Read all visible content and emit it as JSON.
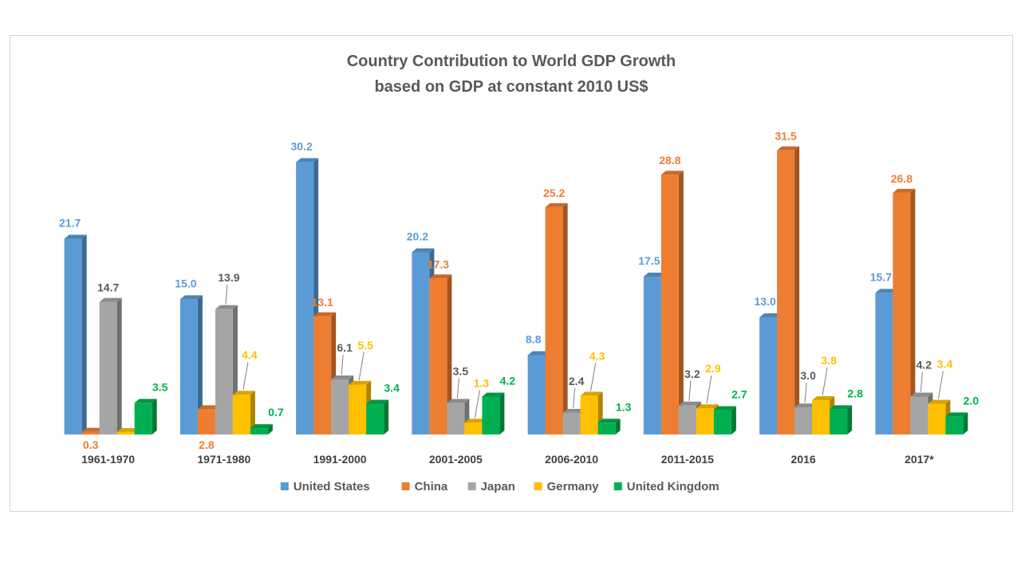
{
  "chart_data": {
    "type": "bar",
    "title": "Country Contribution to World GDP Growth",
    "subtitle": "based on GDP at constant 2010 US$",
    "categories": [
      "1961-1970",
      "1971-1980",
      "1991-2000",
      "2001-2005",
      "2006-2010",
      "2011-2015",
      "2016",
      "2017*"
    ],
    "series": [
      {
        "name": "United States",
        "color": "#5b9bd5",
        "values": [
          21.7,
          15.0,
          30.2,
          20.2,
          8.8,
          17.5,
          13.0,
          15.7
        ]
      },
      {
        "name": "China",
        "color": "#ed7d31",
        "values": [
          0.3,
          2.8,
          13.1,
          17.3,
          25.2,
          28.8,
          31.5,
          26.8
        ]
      },
      {
        "name": "Japan",
        "color": "#a5a5a5",
        "values": [
          14.7,
          13.9,
          6.1,
          3.5,
          2.4,
          3.2,
          3.0,
          4.2
        ]
      },
      {
        "name": "Germany",
        "color": "#ffc000",
        "values": [
          0.0,
          4.4,
          5.5,
          1.3,
          4.3,
          2.9,
          3.8,
          3.4
        ]
      },
      {
        "name": "United Kingdom",
        "color": "#00b050",
        "values": [
          3.5,
          0.7,
          3.4,
          4.2,
          1.3,
          2.7,
          2.8,
          2.0
        ]
      }
    ],
    "data_labels": [
      [
        "21.7",
        "15.0",
        "30.2",
        "20.2",
        "8.8",
        "17.5",
        "13.0",
        "15.7"
      ],
      [
        "0.3",
        "2.8",
        "13.1",
        "17.3",
        "25.2",
        "28.8",
        "31.5",
        "26.8"
      ],
      [
        "14.7",
        "13.9",
        "6.1",
        "3.5",
        "2.4",
        "3.2",
        "3.0",
        "4.2"
      ],
      [
        "",
        "4.4",
        "5.5",
        "1.3",
        "4.3",
        "2.9",
        "3.8",
        "3.4"
      ],
      [
        "3.5",
        "0.7",
        "3.4",
        "4.2",
        "1.3",
        "2.7",
        "2.8",
        "2.0"
      ]
    ],
    "ylim": [
      0,
      32
    ],
    "grid": false,
    "legend_position": "bottom"
  }
}
